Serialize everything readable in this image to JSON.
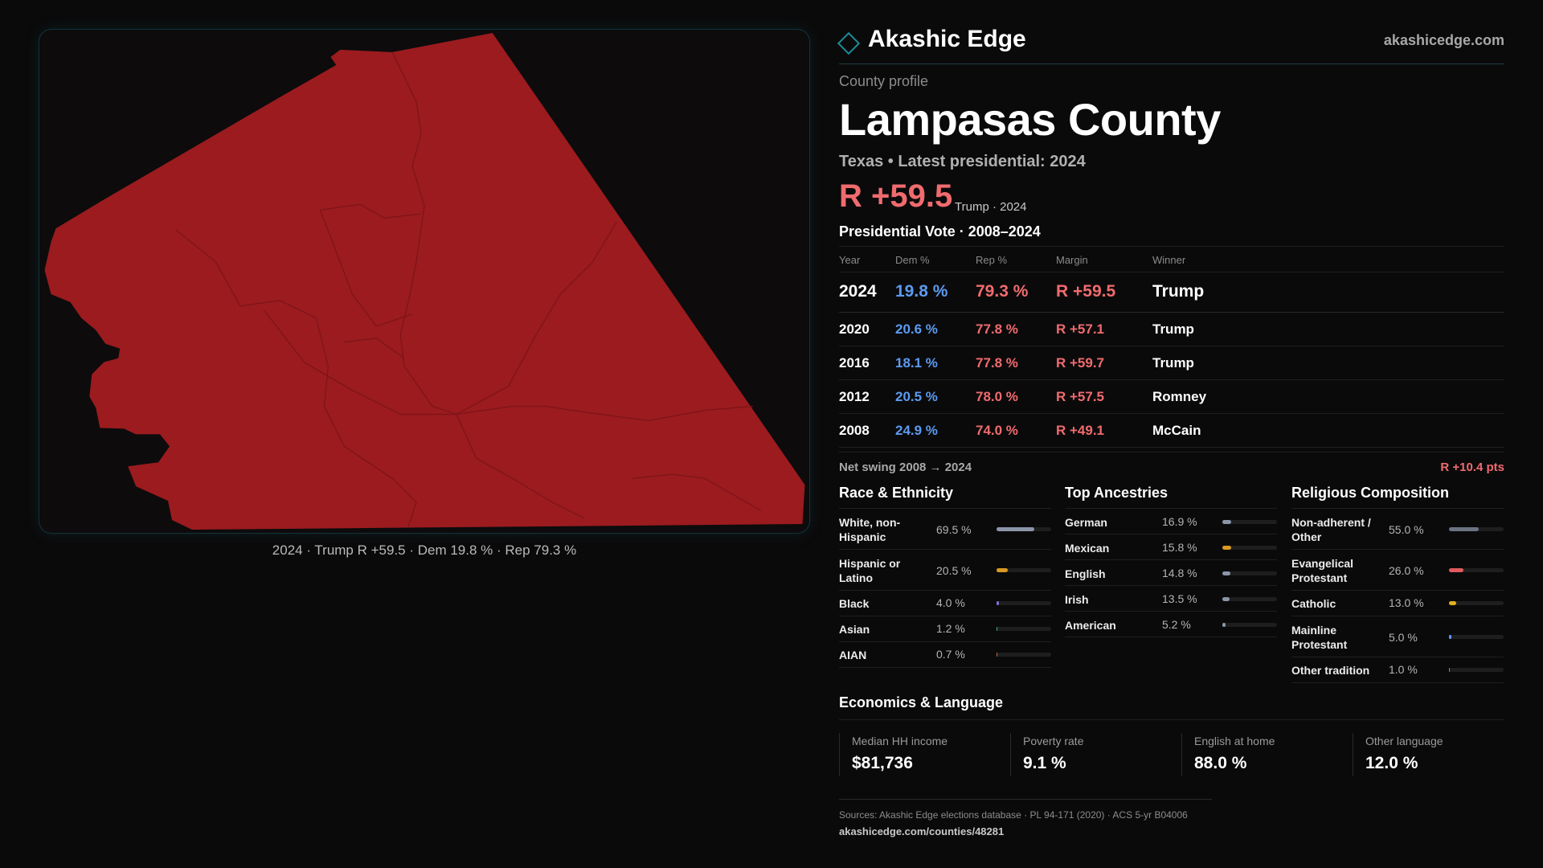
{
  "map": {
    "caption": "2024 · Trump R +59.5 · Dem 19.8 % · Rep 79.3 %",
    "fill_color": "#9b1b1f"
  },
  "brand": {
    "logo_icon": "diamond-icon",
    "name": "Akashic Edge",
    "url": "akashicedge.com",
    "accent": "#1a8d99"
  },
  "profile": {
    "eyebrow": "County profile",
    "title": "Lampasas County",
    "subline": "Texas • Latest presidential: 2024",
    "margin": "R +59.5",
    "margin_note": "Trump · 2024",
    "margin_color": "#f06b6e"
  },
  "vote": {
    "title": "Presidential Vote · 2008–2024",
    "headers": {
      "year": "Year",
      "dem": "Dem %",
      "rep": "Rep %",
      "margin": "Margin",
      "winner": "Winner"
    },
    "rows": [
      {
        "year": "2024",
        "dem": "19.8 %",
        "rep": "79.3 %",
        "margin": "R +59.5",
        "winner": "Trump"
      },
      {
        "year": "2020",
        "dem": "20.6 %",
        "rep": "77.8 %",
        "margin": "R +57.1",
        "winner": "Trump"
      },
      {
        "year": "2016",
        "dem": "18.1 %",
        "rep": "77.8 %",
        "margin": "R +59.7",
        "winner": "Trump"
      },
      {
        "year": "2012",
        "dem": "20.5 %",
        "rep": "78.0 %",
        "margin": "R +57.5",
        "winner": "Romney"
      },
      {
        "year": "2008",
        "dem": "24.9 %",
        "rep": "74.0 %",
        "margin": "R +49.1",
        "winner": "McCain"
      }
    ],
    "dem_color": "#5b9bf0",
    "rep_color": "#f06b6e"
  },
  "swing": {
    "label": "Net swing 2008 → 2024",
    "value": "R +10.4 pts"
  },
  "race": {
    "title": "Race & Ethnicity",
    "items": [
      {
        "label": "White, non-Hispanic",
        "value": "69.5 %",
        "fraction": 0.695,
        "color": "#8a96a8"
      },
      {
        "label": "Hispanic or Latino",
        "value": "20.5 %",
        "fraction": 0.205,
        "color": "#d89a22"
      },
      {
        "label": "Black",
        "value": "4.0 %",
        "fraction": 0.04,
        "color": "#7b6fd8"
      },
      {
        "label": "Asian",
        "value": "1.2 %",
        "fraction": 0.012,
        "color": "#3aa89a"
      },
      {
        "label": "AIAN",
        "value": "0.7 %",
        "fraction": 0.007,
        "color": "#c0683a"
      }
    ]
  },
  "ancestry": {
    "title": "Top Ancestries",
    "items": [
      {
        "label": "German",
        "value": "16.9 %",
        "fraction": 0.169,
        "color": "#8a96a8"
      },
      {
        "label": "Mexican",
        "value": "15.8 %",
        "fraction": 0.158,
        "color": "#d89a22"
      },
      {
        "label": "English",
        "value": "14.8 %",
        "fraction": 0.148,
        "color": "#8a96a8"
      },
      {
        "label": "Irish",
        "value": "13.5 %",
        "fraction": 0.135,
        "color": "#8a96a8"
      },
      {
        "label": "American",
        "value": "5.2 %",
        "fraction": 0.052,
        "color": "#8a96a8"
      }
    ]
  },
  "religion": {
    "title": "Religious Composition",
    "items": [
      {
        "label": "Non-adherent / Other",
        "value": "55.0 %",
        "fraction": 0.55,
        "color": "#6b7382"
      },
      {
        "label": "Evangelical Protestant",
        "value": "26.0 %",
        "fraction": 0.26,
        "color": "#e05a5e"
      },
      {
        "label": "Catholic",
        "value": "13.0 %",
        "fraction": 0.13,
        "color": "#e0b020"
      },
      {
        "label": "Mainline Protestant",
        "value": "5.0 %",
        "fraction": 0.05,
        "color": "#5b9bf0"
      },
      {
        "label": "Other tradition",
        "value": "1.0 %",
        "fraction": 0.01,
        "color": "#8a8a8a"
      }
    ]
  },
  "econ": {
    "title": "Economics & Language",
    "items": [
      {
        "label": "Median HH income",
        "value": "$81,736"
      },
      {
        "label": "Poverty rate",
        "value": "9.1 %"
      },
      {
        "label": "English at home",
        "value": "88.0 %"
      },
      {
        "label": "Other language",
        "value": "12.0 %"
      }
    ]
  },
  "sources": {
    "line": "Sources: Akashic Edge elections database · PL 94-171 (2020) · ACS 5-yr B04006",
    "url": "akashicedge.com/counties/48281"
  }
}
